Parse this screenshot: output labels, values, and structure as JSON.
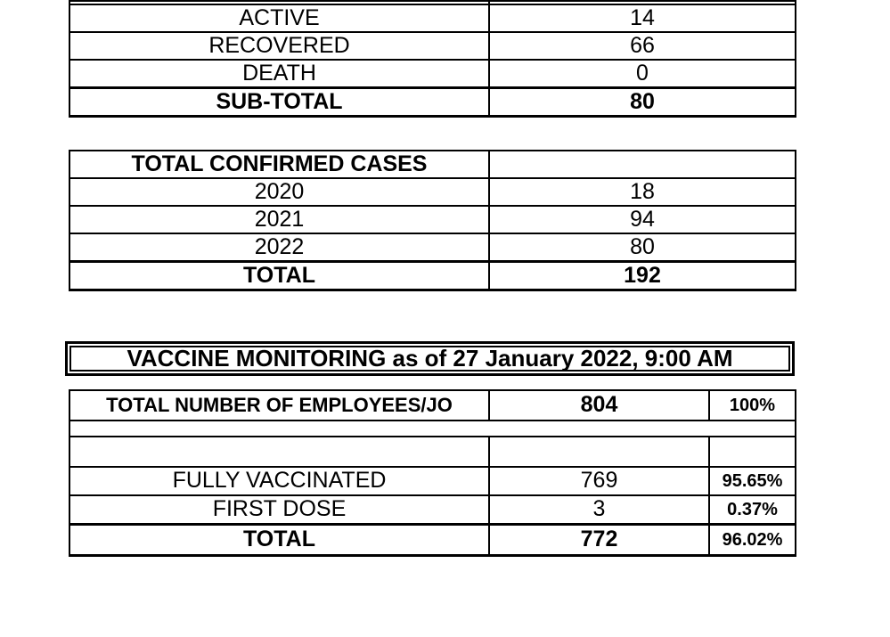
{
  "colors": {
    "ink": "#000000",
    "paper": "#ffffff"
  },
  "case_summary": {
    "rows": [
      {
        "label": "ACTIVE",
        "value": "14"
      },
      {
        "label": "RECOVERED",
        "value": "66"
      },
      {
        "label": "DEATH",
        "value": "0"
      },
      {
        "label": "SUB-TOTAL",
        "value": "80"
      }
    ]
  },
  "confirmed_cases": {
    "title": "TOTAL CONFIRMED CASES",
    "rows": [
      {
        "label": "2020",
        "value": "18"
      },
      {
        "label": "2021",
        "value": "94"
      },
      {
        "label": "2022",
        "value": "80"
      },
      {
        "label": "TOTAL",
        "value": "192"
      }
    ]
  },
  "vaccine_monitoring": {
    "title": "VACCINE MONITORING as of 27 January 2022, 9:00 AM",
    "employees_row": {
      "label": "TOTAL NUMBER OF EMPLOYEES/JO",
      "count": "804",
      "percent": "100%"
    },
    "rows": [
      {
        "label": "FULLY VACCINATED",
        "count": "769",
        "percent": "95.65%"
      },
      {
        "label": "FIRST DOSE",
        "count": "3",
        "percent": "0.37%"
      },
      {
        "label": "TOTAL",
        "count": "772",
        "percent": "96.02%"
      }
    ]
  }
}
